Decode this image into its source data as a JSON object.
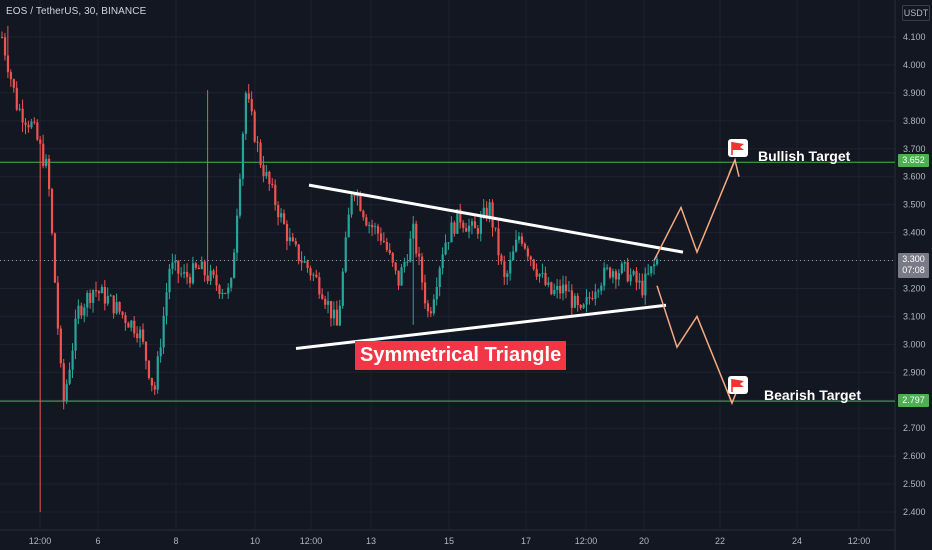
{
  "header": {
    "symbol_line": "EOS / TetherUS, 30, BINANCE",
    "currency": "USDT"
  },
  "annotations": {
    "pattern_label": "Symmetrical Triangle",
    "bullish_label": "Bullish Target",
    "bearish_label": "Bearish Target"
  },
  "price_tags": {
    "bullish": "3.652",
    "bearish": "2.797",
    "current": "3.300",
    "countdown": "07:08"
  },
  "colors": {
    "background": "#131722",
    "up_candle": "#26a69a",
    "down_candle": "#ef5350",
    "target_line": "#4caf50",
    "label_red": "#f23645",
    "projection": "#f5a97f"
  },
  "chart_data": {
    "type": "candlestick",
    "y_axis": {
      "range": [
        2.37,
        4.17
      ],
      "ticks": [
        "4.100",
        "4.000",
        "3.900",
        "3.800",
        "3.700",
        "3.600",
        "3.500",
        "3.400",
        "3.300",
        "3.200",
        "3.100",
        "3.000",
        "2.900",
        "2.800",
        "2.700",
        "2.600",
        "2.500",
        "2.400"
      ]
    },
    "x_axis": {
      "ticks": [
        "12:00",
        "6",
        "8",
        "10",
        "12:00",
        "13",
        "15",
        "17",
        "12:00",
        "20",
        "22",
        "24",
        "12:00"
      ]
    },
    "horizontal_levels": [
      {
        "name": "Bullish Target",
        "value": 3.652
      },
      {
        "name": "Bearish Target",
        "value": 2.797
      },
      {
        "name": "Last price",
        "value": 3.3
      }
    ],
    "triangle": {
      "upper_trendline": {
        "from": 3.57,
        "to": 3.33
      },
      "lower_trendline": {
        "from": 2.985,
        "to": 3.14
      }
    },
    "price_path": [
      4.1,
      3.85,
      3.78,
      3.62,
      2.78,
      3.12,
      3.2,
      3.16,
      3.1,
      3.05,
      2.83,
      3.28,
      3.24,
      3.27,
      3.22,
      3.18,
      3.9,
      3.65,
      3.5,
      3.35,
      3.28,
      3.2,
      3.06,
      3.58,
      3.44,
      3.38,
      3.22,
      3.4,
      3.1,
      3.36,
      3.46,
      3.4,
      3.49,
      3.22,
      3.4,
      3.28,
      3.18,
      3.2,
      3.1,
      3.22,
      3.27,
      3.26,
      3.2,
      3.3
    ],
    "intrabar_extremes": [
      {
        "value": 4.14,
        "note": "high near start"
      },
      {
        "value": 2.4,
        "note": "wick low"
      },
      {
        "value": 3.91,
        "note": "spike high"
      },
      {
        "value": 3.07,
        "note": "dip"
      }
    ]
  }
}
